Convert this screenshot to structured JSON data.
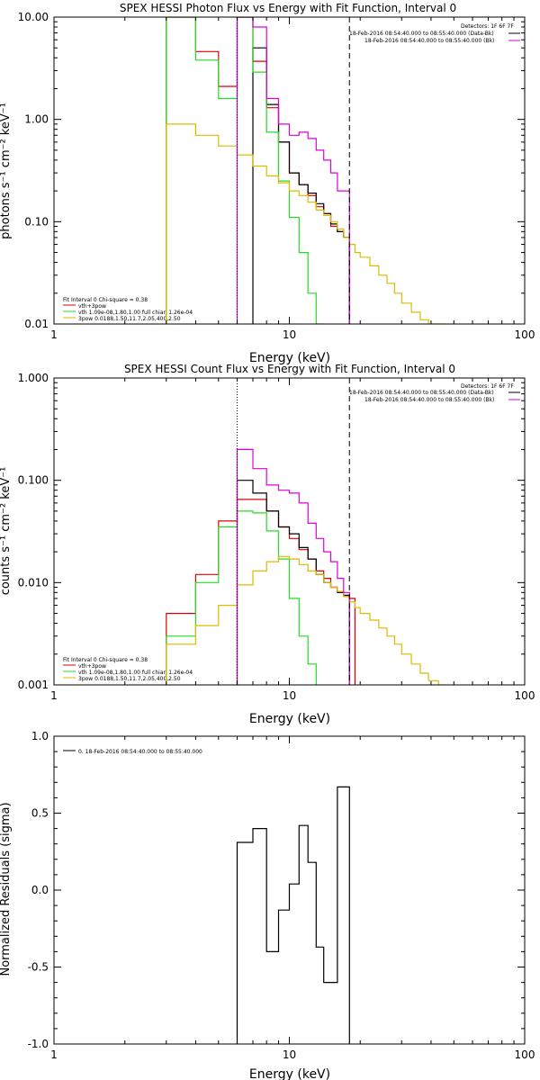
{
  "colors": {
    "black": "#000000",
    "red": "#e00000",
    "green": "#22dd22",
    "yellow": "#ddbb00",
    "magenta": "#dd00dd",
    "blue": "#0000ff"
  },
  "chart_data": [
    {
      "type": "line",
      "title": "SPEX HESSI Photon Flux vs Energy with Fit Function, Interval 0",
      "xlabel": "Energy (keV)",
      "ylabel": "photons s⁻¹ cm⁻² keV⁻¹",
      "xscale": "log",
      "yscale": "log",
      "xlim": [
        1,
        100
      ],
      "ylim": [
        0.01,
        10
      ],
      "xticks": [
        "1",
        "10",
        "100"
      ],
      "yticks": [
        "0.01",
        "0.10",
        "1.00",
        "10.00"
      ],
      "edges": [
        3,
        4,
        5,
        6,
        7,
        8,
        9,
        10,
        11,
        12,
        13,
        14,
        15,
        16,
        17,
        18,
        19,
        20,
        22,
        24,
        26,
        28,
        30,
        33,
        36,
        39,
        43,
        46
      ],
      "series": [
        {
          "name": "vth+3pow",
          "color": "red",
          "values": [
            10,
            4.6,
            2.1,
            10,
            3.7,
            1.3,
            0.6,
            0.3,
            0.23,
            0.18,
            0.14,
            0.12,
            0.09,
            0.08,
            0.07,
            null,
            null,
            null,
            null,
            null,
            null,
            null,
            null,
            null,
            null,
            null,
            null
          ]
        },
        {
          "name": "data",
          "color": "black",
          "values": [
            null,
            null,
            null,
            null,
            5,
            1.4,
            0.6,
            0.3,
            0.23,
            0.19,
            0.15,
            0.12,
            0.095,
            0.08,
            0.07,
            null,
            null,
            null,
            null,
            null,
            null,
            null,
            null,
            null,
            null,
            null,
            null
          ]
        },
        {
          "name": "vth 1.09e-08,1.80,1.00  full chian 1.26e-04",
          "color": "green",
          "values": [
            10,
            3.8,
            1.6,
            10,
            2.9,
            0.75,
            0.25,
            0.11,
            0.05,
            0.02,
            0.007,
            null,
            null,
            null,
            null,
            null,
            null,
            null,
            null,
            null,
            null,
            null,
            null,
            null,
            null,
            null,
            null
          ]
        },
        {
          "name": "3pow 0.0188,1.50,11.7,2.05,400,2.50",
          "color": "yellow",
          "values": [
            0.9,
            0.7,
            0.55,
            0.45,
            0.35,
            0.28,
            0.24,
            0.2,
            0.18,
            0.155,
            0.13,
            0.115,
            0.1,
            0.085,
            0.07,
            0.06,
            0.05,
            0.045,
            0.037,
            0.03,
            0.025,
            0.02,
            0.016,
            0.013,
            0.011,
            0.009,
            0.007
          ]
        },
        {
          "name": "18-Feb-2016 08:54:40.000 to 08:55:40.000 (Data-Bk)",
          "color": "black",
          "values": []
        },
        {
          "name": "18-Feb-2016 08:54:40.000 to 08:55:40.000 (Bk)",
          "color": "magenta",
          "values": [
            null,
            null,
            null,
            10,
            8,
            1.6,
            0.9,
            0.7,
            0.75,
            0.65,
            0.5,
            0.4,
            0.3,
            0.2,
            0.2,
            null,
            null,
            null,
            null,
            null,
            null,
            null,
            null,
            null,
            null,
            null,
            null
          ]
        }
      ],
      "legend_lines": [
        "Fit Interval 0   Chi-square = 0.38",
        "vth+3pow",
        "vth 1.09e-08,1.80,1.00  full chian 1.26e-04",
        "3pow 0.0188,1.50,11.7,2.05,400,2.50"
      ],
      "detectors": "Detectors: 1F 6F 7F",
      "vlines": [
        {
          "x": 6,
          "style": "dotted",
          "color": "blue"
        },
        {
          "x": 18,
          "style": "dashed",
          "color": "black"
        }
      ],
      "legend_position": "top-right / bottom-left"
    },
    {
      "type": "line",
      "title": "SPEX HESSI Count Flux vs Energy with Fit Function, Interval 0",
      "xlabel": "Energy (keV)",
      "ylabel": "counts s⁻¹ cm⁻² keV⁻¹",
      "xscale": "log",
      "yscale": "log",
      "xlim": [
        1,
        100
      ],
      "ylim": [
        0.001,
        1
      ],
      "xticks": [
        "1",
        "10",
        "100"
      ],
      "yticks": [
        "0.001",
        "0.010",
        "0.100",
        "1.000"
      ],
      "edges": [
        3,
        4,
        5,
        6,
        7,
        8,
        9,
        10,
        11,
        12,
        13,
        14,
        15,
        16,
        17,
        18,
        19,
        20,
        22,
        24,
        26,
        28,
        30,
        33,
        36,
        39,
        43,
        46
      ],
      "series": [
        {
          "name": "vth+3pow",
          "color": "red",
          "values": [
            0.005,
            0.012,
            0.04,
            0.065,
            0.065,
            0.05,
            0.035,
            0.027,
            0.021,
            0.017,
            0.013,
            0.011,
            0.009,
            0.008,
            0.0075,
            0.007,
            null,
            null,
            null,
            null,
            null,
            null,
            null,
            null,
            null,
            null,
            null
          ]
        },
        {
          "name": "data",
          "color": "black",
          "values": [
            null,
            null,
            null,
            0.1,
            0.075,
            0.05,
            0.035,
            0.03,
            0.022,
            0.017,
            0.012,
            0.01,
            0.009,
            0.008,
            0.0075,
            null,
            null,
            null,
            null,
            null,
            null,
            null,
            null,
            null,
            null,
            null,
            null
          ]
        },
        {
          "name": "vth 1.09e-08,1.80,1.00  full chian 1.26e-04",
          "color": "green",
          "values": [
            0.003,
            0.01,
            0.035,
            0.05,
            0.048,
            0.032,
            0.017,
            0.007,
            0.003,
            0.0016,
            null,
            null,
            null,
            null,
            null,
            null,
            null,
            null,
            null,
            null,
            null,
            null,
            null,
            null,
            null,
            null,
            null
          ]
        },
        {
          "name": "3pow 0.0188,1.50,11.7,2.05,400,2.50",
          "color": "yellow",
          "values": [
            0.0025,
            0.0038,
            0.006,
            0.0095,
            0.013,
            0.016,
            0.018,
            0.017,
            0.015,
            0.013,
            0.012,
            0.01,
            0.009,
            0.0082,
            0.0073,
            0.0065,
            0.0057,
            0.005,
            0.0043,
            0.0036,
            0.003,
            0.0025,
            0.002,
            0.0016,
            0.0013,
            0.0011,
            0.00085
          ]
        },
        {
          "name": "18-Feb-2016 08:54:40.000 to 08:55:40.000 (Data-Bk)",
          "color": "black",
          "values": []
        },
        {
          "name": "18-Feb-2016 08:54:40.000 to 08:55:40.000 (Bk)",
          "color": "magenta",
          "values": [
            null,
            null,
            null,
            0.2,
            0.13,
            0.09,
            0.08,
            0.075,
            0.06,
            0.038,
            0.027,
            0.02,
            0.016,
            0.011,
            0.008,
            null,
            null,
            null,
            null,
            null,
            null,
            null,
            null,
            null,
            null,
            null,
            null
          ]
        }
      ],
      "legend_lines": [
        "Fit Interval 0   Chi-square = 0.38",
        "vth+3pow",
        "vth 1.09e-08,1.80,1.00  full chian 1.26e-04",
        "3pow 0.0188,1.50,11.7,2.05,400,2.50"
      ],
      "detectors": "Detectors: 1F 6F 7F",
      "vlines": [
        {
          "x": 6,
          "style": "dotted",
          "color": "black"
        },
        {
          "x": 18,
          "style": "dashed",
          "color": "black"
        }
      ],
      "legend_position": "top-right / bottom-left"
    },
    {
      "type": "line",
      "title": "",
      "xlabel": "Energy (keV)",
      "ylabel": "Normalized Residuals (sigma)",
      "xscale": "log",
      "yscale": "linear",
      "xlim": [
        1,
        100
      ],
      "ylim": [
        -1.0,
        1.0
      ],
      "xticks": [
        "1",
        "10",
        "100"
      ],
      "yticks": [
        "-1.0",
        "-0.5",
        "0.0",
        "0.5",
        "1.0"
      ],
      "edges": [
        6,
        7,
        8,
        9,
        10,
        11,
        12,
        13,
        14,
        15,
        16,
        17,
        18
      ],
      "series": [
        {
          "name": "0. 18-Feb-2016 08:54:40.000 to 08:55:40.000",
          "color": "black",
          "values": [
            0.31,
            0.4,
            -0.4,
            -0.13,
            0.04,
            0.42,
            0.18,
            -0.37,
            -0.6,
            -0.6,
            0.67,
            0.67
          ]
        }
      ],
      "legend_position": "top-left"
    }
  ]
}
